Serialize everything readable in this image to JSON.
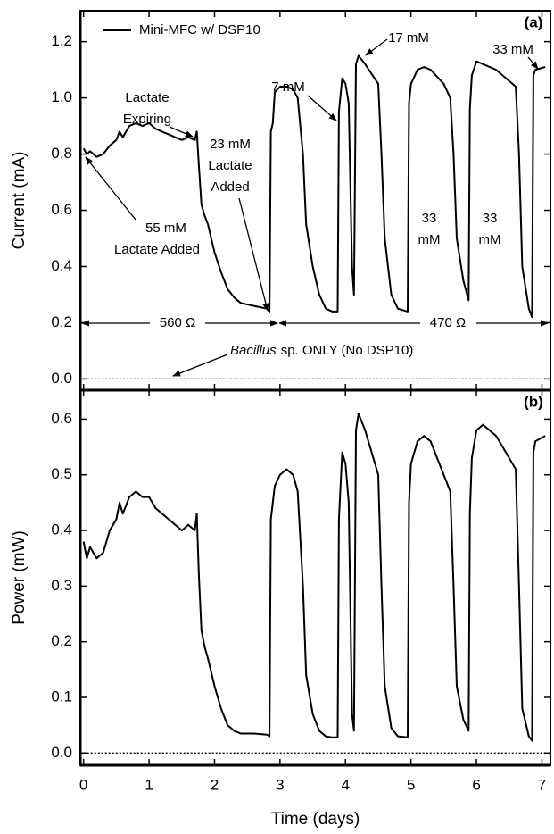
{
  "chart_data": [
    {
      "type": "line",
      "label": "(a)",
      "ylabel": "Current (mA)",
      "xlim": [
        -0.05,
        7.13
      ],
      "ylim": [
        -0.04,
        1.31
      ],
      "yticks": [
        {
          "value": 0,
          "label": "0.0"
        },
        0.2,
        0.4,
        0.6,
        0.8,
        {
          "value": 1,
          "label": "1.0"
        },
        1.2
      ],
      "legend": "top-left",
      "series": [
        {
          "name": "Mini-MFC w/ DSP10",
          "color": "#000000",
          "style": "solid",
          "x": [
            0,
            0.05,
            0.1,
            0.2,
            0.3,
            0.4,
            0.5,
            0.55,
            0.6,
            0.7,
            0.8,
            0.9,
            1.0,
            1.1,
            1.2,
            1.3,
            1.4,
            1.5,
            1.6,
            1.7,
            1.73,
            1.76,
            1.8,
            1.85,
            1.9,
            2.0,
            2.1,
            2.2,
            2.3,
            2.4,
            2.6,
            2.8,
            2.84,
            2.86,
            2.89,
            2.92,
            3.0,
            3.1,
            3.2,
            3.27,
            3.35,
            3.4,
            3.5,
            3.6,
            3.7,
            3.8,
            3.88,
            3.9,
            3.95,
            4.0,
            4.05,
            4.1,
            4.13,
            4.16,
            4.2,
            4.3,
            4.5,
            4.55,
            4.6,
            4.7,
            4.8,
            4.95,
            4.97,
            5.0,
            5.1,
            5.2,
            5.3,
            5.5,
            5.6,
            5.65,
            5.7,
            5.8,
            5.88,
            5.9,
            5.93,
            6.0,
            6.1,
            6.3,
            6.5,
            6.6,
            6.65,
            6.7,
            6.8,
            6.85,
            6.87,
            6.9,
            7.05
          ],
          "values": [
            0.82,
            0.8,
            0.81,
            0.79,
            0.8,
            0.83,
            0.85,
            0.88,
            0.86,
            0.9,
            0.91,
            0.9,
            0.91,
            0.89,
            0.88,
            0.87,
            0.86,
            0.85,
            0.86,
            0.85,
            0.88,
            0.76,
            0.62,
            0.58,
            0.55,
            0.45,
            0.38,
            0.32,
            0.29,
            0.27,
            0.26,
            0.25,
            0.24,
            0.88,
            0.91,
            1.02,
            1.04,
            1.04,
            1.03,
            1.0,
            0.8,
            0.55,
            0.4,
            0.3,
            0.25,
            0.24,
            0.24,
            0.95,
            1.07,
            1.05,
            0.98,
            0.4,
            0.3,
            1.12,
            1.15,
            1.12,
            1.05,
            0.8,
            0.5,
            0.3,
            0.25,
            0.24,
            0.98,
            1.05,
            1.1,
            1.11,
            1.1,
            1.05,
            1.0,
            0.8,
            0.5,
            0.35,
            0.28,
            0.96,
            1.08,
            1.13,
            1.12,
            1.1,
            1.06,
            1.04,
            0.8,
            0.4,
            0.25,
            0.22,
            1.08,
            1.1,
            1.11
          ]
        },
        {
          "color": "#000000",
          "style": "dotted",
          "x": [
            0,
            7.05
          ],
          "values": [
            0,
            0
          ]
        }
      ],
      "annotations": [
        {
          "lines": [
            "Lactate",
            "Expiring"
          ]
        },
        {
          "lines": [
            "23 mM",
            "Lactate",
            "Added"
          ]
        },
        {
          "lines": [
            "55 mM",
            "Lactate Added"
          ]
        },
        {
          "lines": [
            "7 mM"
          ]
        },
        {
          "lines": [
            "17 mM"
          ]
        },
        {
          "lines": [
            "33",
            "mM"
          ]
        },
        {
          "lines": [
            "33",
            "mM"
          ]
        },
        {
          "lines": [
            "33 mM"
          ]
        },
        {
          "lines": [
            "560 Ω"
          ]
        },
        {
          "lines": [
            "470 Ω"
          ]
        },
        {
          "italic": "Bacillus",
          "text": "sp. ONLY (No DSP10)"
        }
      ]
    },
    {
      "type": "line",
      "label": "(b)",
      "ylabel": "Power (mW)",
      "xlabel": "Time (days)",
      "xlim": [
        -0.05,
        7.13
      ],
      "ylim": [
        -0.022,
        0.652
      ],
      "xticks": [
        0,
        1,
        2,
        3,
        4,
        5,
        6,
        7
      ],
      "yticks": [
        {
          "value": 0,
          "label": "0.0"
        },
        0.1,
        0.2,
        0.3,
        0.4,
        0.5,
        0.6
      ],
      "series": [
        {
          "color": "#000000",
          "style": "solid",
          "x": [
            0,
            0.05,
            0.1,
            0.2,
            0.3,
            0.4,
            0.5,
            0.55,
            0.6,
            0.7,
            0.8,
            0.9,
            1.0,
            1.1,
            1.2,
            1.3,
            1.4,
            1.5,
            1.6,
            1.7,
            1.73,
            1.76,
            1.8,
            1.85,
            1.9,
            2.0,
            2.1,
            2.2,
            2.3,
            2.4,
            2.6,
            2.8,
            2.84,
            2.86,
            2.89,
            2.92,
            3.0,
            3.1,
            3.2,
            3.27,
            3.35,
            3.4,
            3.5,
            3.6,
            3.7,
            3.8,
            3.88,
            3.9,
            3.95,
            4.0,
            4.05,
            4.1,
            4.13,
            4.16,
            4.2,
            4.3,
            4.5,
            4.55,
            4.6,
            4.7,
            4.8,
            4.95,
            4.97,
            5.0,
            5.1,
            5.2,
            5.3,
            5.5,
            5.6,
            5.65,
            5.7,
            5.8,
            5.88,
            5.9,
            5.93,
            6.0,
            6.1,
            6.3,
            6.5,
            6.6,
            6.65,
            6.7,
            6.8,
            6.85,
            6.87,
            6.9,
            7.05
          ],
          "values": [
            0.38,
            0.35,
            0.37,
            0.35,
            0.36,
            0.4,
            0.42,
            0.45,
            0.43,
            0.46,
            0.47,
            0.46,
            0.46,
            0.44,
            0.43,
            0.42,
            0.41,
            0.4,
            0.41,
            0.4,
            0.43,
            0.32,
            0.22,
            0.19,
            0.17,
            0.12,
            0.08,
            0.05,
            0.04,
            0.035,
            0.035,
            0.033,
            0.03,
            0.42,
            0.45,
            0.48,
            0.5,
            0.51,
            0.5,
            0.47,
            0.3,
            0.14,
            0.07,
            0.04,
            0.03,
            0.028,
            0.028,
            0.42,
            0.54,
            0.52,
            0.45,
            0.07,
            0.04,
            0.58,
            0.61,
            0.58,
            0.5,
            0.3,
            0.12,
            0.045,
            0.03,
            0.028,
            0.45,
            0.52,
            0.56,
            0.57,
            0.56,
            0.5,
            0.47,
            0.3,
            0.12,
            0.06,
            0.04,
            0.43,
            0.53,
            0.58,
            0.59,
            0.57,
            0.53,
            0.51,
            0.3,
            0.08,
            0.03,
            0.022,
            0.54,
            0.56,
            0.57
          ]
        },
        {
          "color": "#000000",
          "style": "dotted",
          "x": [
            0,
            7.05
          ],
          "values": [
            0,
            0
          ]
        }
      ]
    }
  ]
}
